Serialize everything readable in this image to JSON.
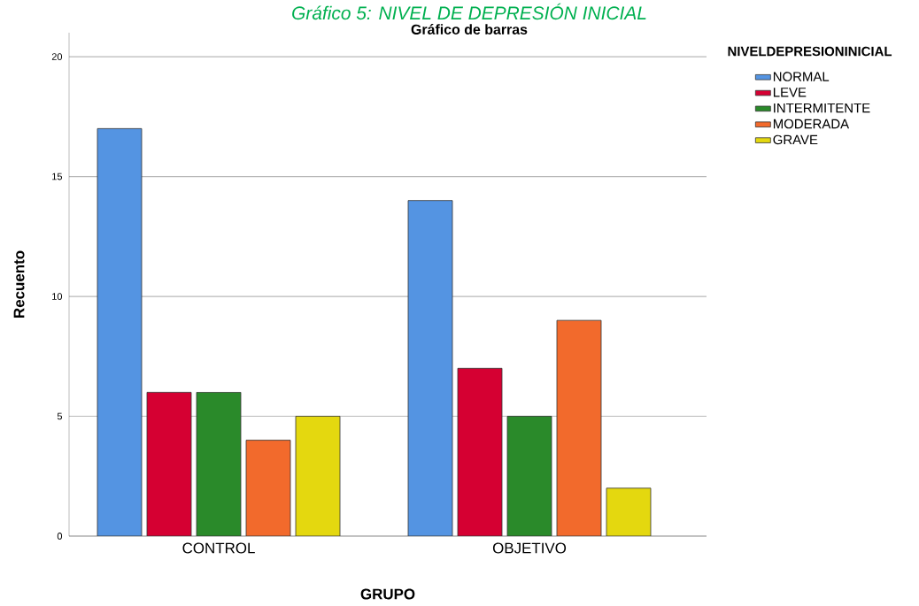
{
  "chart_data": {
    "type": "bar",
    "title": "Gráfico 5: NIVEL DE DEPRESIÓN INICIAL",
    "subtitle": "Gráfico de barras",
    "xlabel": "GRUPO",
    "ylabel": "Recuento",
    "legend_title": "NIVELDEPRESIONINICIAL",
    "categories": [
      "CONTROL",
      "OBJETIVO"
    ],
    "series": [
      {
        "name": "NORMAL",
        "color": "#5494e2",
        "values": [
          17,
          14
        ]
      },
      {
        "name": "LEVE",
        "color": "#d50032",
        "values": [
          6,
          7
        ]
      },
      {
        "name": "INTERMITENTE",
        "color": "#2a8a2a",
        "values": [
          6,
          5
        ]
      },
      {
        "name": "MODERADA",
        "color": "#f26a2c",
        "values": [
          4,
          9
        ]
      },
      {
        "name": "GRAVE",
        "color": "#e4d80f",
        "values": [
          5,
          2
        ]
      }
    ],
    "ylim": [
      0,
      21
    ],
    "yticks": [
      0,
      5,
      10,
      15,
      20
    ],
    "grid": "y",
    "legend": "top right"
  }
}
